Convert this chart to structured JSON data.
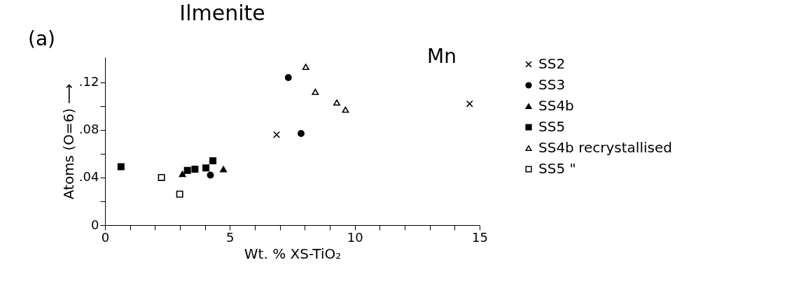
{
  "chart_data": {
    "type": "scatter",
    "title": "Ilmenite",
    "xlabel": "Wt. % XS-TiO₂",
    "ylabel": "Atoms (O=6) ⟶",
    "annotations": [
      "(a)",
      "Mn"
    ],
    "xlim": [
      0,
      15
    ],
    "ylim": [
      0,
      0.141
    ],
    "xticks": [
      0,
      {
        "value": 1,
        "label": null
      },
      {
        "value": 2,
        "label": null
      },
      {
        "value": 3,
        "label": null
      },
      {
        "value": 4,
        "label": null
      },
      5,
      {
        "value": 6,
        "label": null
      },
      {
        "value": 7,
        "label": null
      },
      {
        "value": 8,
        "label": null
      },
      {
        "value": 9,
        "label": null
      },
      10,
      {
        "value": 11,
        "label": null
      },
      {
        "value": 12,
        "label": null
      },
      {
        "value": 13,
        "label": null
      },
      {
        "value": 14,
        "label": null
      },
      15
    ],
    "yticks": [
      0,
      {
        "value": 0.02,
        "label": null
      },
      {
        "value": 0.04,
        "label": ".04"
      },
      {
        "value": 0.06,
        "label": null
      },
      {
        "value": 0.08,
        "label": ".08"
      },
      {
        "value": 0.1,
        "label": null
      },
      {
        "value": 0.12,
        "label": ".12"
      }
    ],
    "grid": false,
    "legend": "right",
    "series": [
      {
        "name": "SS2",
        "color": "#000000",
        "marker": "cross",
        "x": [
          6.87,
          14.6
        ],
        "values": [
          0.076,
          0.102
        ]
      },
      {
        "name": "SS3",
        "color": "#000000",
        "marker": "circle",
        "x": [
          7.34,
          7.85,
          4.22
        ],
        "values": [
          0.124,
          0.077,
          0.042
        ]
      },
      {
        "name": "SS4b",
        "color": "#000000",
        "marker": "triangle",
        "x": [
          3.1,
          4.74
        ],
        "values": [
          0.043,
          0.047
        ]
      },
      {
        "name": "SS5",
        "color": "#000000",
        "marker": "square",
        "x": [
          0.64,
          3.3,
          3.6,
          4.04,
          4.32
        ],
        "values": [
          0.049,
          0.046,
          0.047,
          0.048,
          0.054
        ]
      },
      {
        "name": "SS4b recrystallised",
        "color": "#000000",
        "marker": "triangle-open",
        "x": [
          8.04,
          8.42,
          9.28,
          9.63
        ],
        "values": [
          0.133,
          0.112,
          0.103,
          0.097
        ]
      },
      {
        "name": "SS5 \"",
        "color": "#000000",
        "marker": "square-open",
        "x": [
          2.26,
          2.99
        ],
        "values": [
          0.04,
          0.026
        ]
      }
    ]
  }
}
